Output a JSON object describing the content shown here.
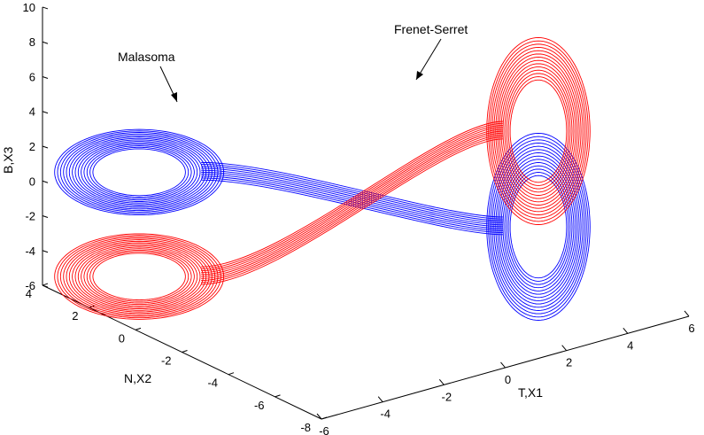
{
  "chart_data": {
    "type": "line",
    "projection": "3d",
    "title": "",
    "xlabel": "T,X1",
    "ylabel": "N,X2",
    "zlabel": "B,X3",
    "xlim": [
      -6,
      6
    ],
    "ylim": [
      -8,
      4
    ],
    "zlim": [
      -6,
      10
    ],
    "xticks": [
      "-6",
      "-4",
      "-2",
      "0",
      "2",
      "4",
      "6"
    ],
    "yticks": [
      "-8",
      "-6",
      "-4",
      "-2",
      "0",
      "2",
      "4"
    ],
    "zticks": [
      "-6",
      "-4",
      "-2",
      "0",
      "2",
      "4",
      "6",
      "8",
      "10"
    ],
    "grid": false,
    "series": [
      {
        "name": "Malasoma",
        "color": "#0000ff",
        "shape": "butterfly attractor: left lobe upper, right lobe lower",
        "left_lobe_center": [
          -5.5,
          0.5,
          2.5
        ],
        "right_lobe_center": [
          4.5,
          -3.5,
          -3.0
        ]
      },
      {
        "name": "Frenet-Serret",
        "color": "#ff0000",
        "shape": "butterfly attractor: left lobe lower, right lobe upper",
        "left_lobe_center": [
          -5.5,
          0.5,
          -3.5
        ],
        "right_lobe_center": [
          4.5,
          -3.5,
          2.5
        ]
      }
    ],
    "annotations": [
      {
        "text": "Malasoma",
        "points_to": "Malasoma"
      },
      {
        "text": "Frenet-Serret",
        "points_to": "Frenet-Serret"
      }
    ]
  }
}
